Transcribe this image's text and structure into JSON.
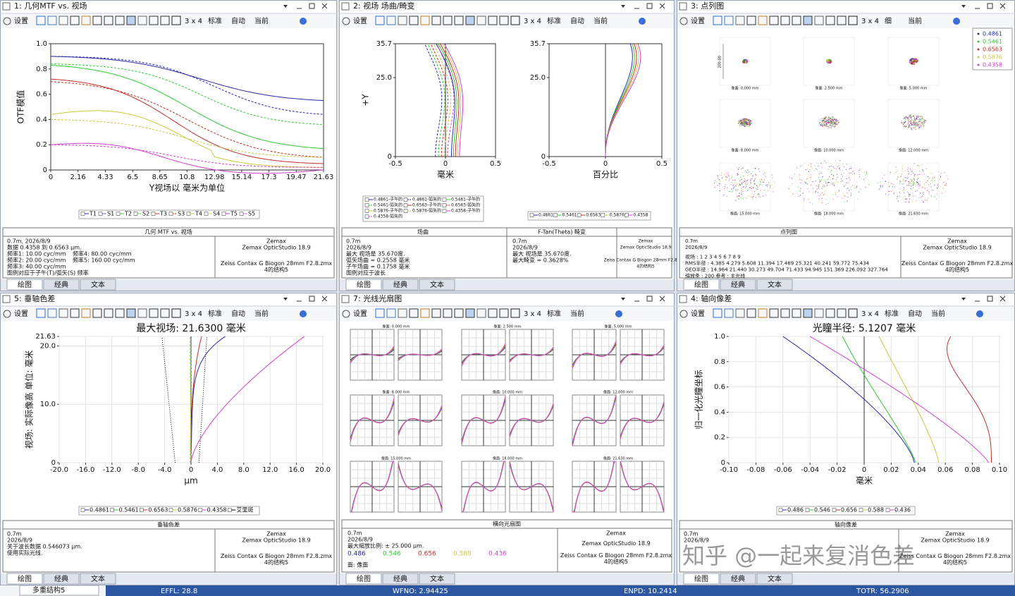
{
  "panels": [
    {
      "title": "1: 几何MTF vs. 视场",
      "toolbar": [
        "设置",
        "3 x 4",
        "标准",
        "自动",
        "当前"
      ],
      "plots": [
        {
          "xticks": [
            "0",
            "2.16",
            "4.33",
            "6.5",
            "8.65",
            "10.8",
            "12.98",
            "15.14",
            "17.3",
            "19.47",
            "21.63"
          ],
          "yticks": [
            "0",
            "0.2",
            "0.4",
            "0.6",
            "0.8",
            "1.0"
          ],
          "xlabel": "Y视场以 毫米为单位",
          "ylabel": "OTF模值"
        }
      ],
      "legends": [
        [
          "T1",
          "S1",
          "T2",
          "S2",
          "T3",
          "S3",
          "T4",
          "S4",
          "T5",
          "S5"
        ]
      ],
      "info": {
        "titles": [
          "几何 MTF vs. 视场"
        ],
        "cols": [
          [
            "0.7m, 2026/8/9",
            "数据 0.4358 到 0.6563 μm.",
            "频率1: 10.00 cyc/mm",
            "频率2: 20.00 cyc/mm",
            "频率3: 40.00 cyc/mm",
            "图例对应于子午(T)/弧矢(S) 频率"
          ],
          [
            "频率4: 80.00 cyc/mm",
            "频率5: 160.00 cyc/mm"
          ],
          [
            "Zemax",
            "Zemax OpticStudio 18.9",
            "Zeiss Contax G Biogon 28mm F2.8.zmx",
            "4的结构5"
          ]
        ]
      },
      "tabs": [
        "绘图",
        "经典",
        "文本"
      ]
    },
    {
      "title": "2: 视场 场曲/畸变",
      "toolbar": [
        "设置",
        "3 x 4",
        "标准",
        "自动",
        "当前"
      ],
      "plots": [
        {
          "xticks": [
            "-0.5",
            "0",
            "0.5"
          ],
          "yticks": [
            "0",
            "25.0",
            "35.7"
          ],
          "xlabel": "毫米",
          "ylabel": "+Y"
        },
        {
          "xticks": [
            "-0.5",
            "0",
            "0.5"
          ],
          "yticks": [
            "0",
            "25.0",
            "35.7"
          ],
          "xlabel": "百分比"
        }
      ],
      "legends": [
        [
          "0.4861-子午的",
          "0.4861-弧矢的",
          "0.5461-子午的",
          "0.5461-弧矢的",
          "0.6563-子午的",
          "0.6563-弧矢的",
          "0.5876-子午的",
          "0.5876-弧矢的",
          "0.4358-子午的",
          "0.4358-弧矢的"
        ],
        [
          "0.4861",
          "0.5461",
          "0.6563",
          "0.5876",
          "0.4358"
        ]
      ],
      "info": {
        "titles": [
          "场曲",
          "F-Tan(Theta) 畸变"
        ],
        "cols": [
          [
            "0.7m",
            "2026/8/9",
            "最大 视场是 35.670度.",
            "弧矢场曲 = 0.2558 毫米",
            "子午场曲 = 0.1758 毫米",
            "图例对应于波长"
          ],
          [
            "0.7m",
            "2026/8/9",
            "最大 视场是 35.670度.",
            "最大畸变 = 0.3628%"
          ],
          [
            "Zemax",
            "Zemax OpticStudio 18.9",
            "Zeiss Contax G Biogon 28mm F2.8.zmx",
            "4的结构5"
          ]
        ]
      },
      "tabs": [
        "绘图",
        "经典",
        "文本"
      ]
    },
    {
      "title": "3: 点列图",
      "toolbar": [
        "设置",
        "3 x 4",
        "细",
        "当前"
      ],
      "legends": [
        [
          "0.4861",
          "0.5461",
          "0.6563",
          "0.5876",
          "0.4358"
        ]
      ],
      "spots": [
        "像面: 0.000 mm",
        "像面: 2.500 mm",
        "像面: 5.000 mm",
        "像面: 8.000 mm",
        "像面: 10.000 mm",
        "像面: 12.000 mm",
        "像面: 15.000 mm",
        "像面: 18.000 mm",
        "像面: 21.630 mm"
      ],
      "scale": "200.00",
      "info": {
        "titles": [
          "点列图"
        ],
        "cols": [
          [
            "0.7m",
            "2026/8/9",
            "视场 :   1   2   3   4   5   6   7   8   9",
            "RMS半径 :  4.385  4.279  5.608  11.394  17.469  25.321  40.241  59.772  75.434",
            "GEO半径 :  14.964  21.440  30.273  49.704  71.433  94.945  151.369  226.092  327.764",
            "缩放条 :  200   参考 :  主光线"
          ],
          [
            "Zemax",
            "Zemax OpticStudio 18.9",
            "Zeiss Contax G Biogon 28mm F2.8.zmx",
            "4的结构5"
          ]
        ]
      },
      "tabs": [
        "绘图",
        "经典",
        "文本"
      ]
    },
    {
      "title": "5: 垂轴色差",
      "toolbar": [
        "设置",
        "3 x 4",
        "标准",
        "自动",
        "当前"
      ],
      "plots": [
        {
          "title": "最大视场: 21.6300 毫米",
          "xticks": [
            "-20.0",
            "-16.0",
            "-12.0",
            "-8.0",
            "-4.0",
            "0",
            "4.0",
            "8.0",
            "12.0",
            "16.0",
            "20.0"
          ],
          "yticks": [
            "0",
            "10.0",
            "20.0",
            "21.63"
          ],
          "xlabel": "μm",
          "ylabel": "视场: 实际像高 单位: 毫米"
        }
      ],
      "legends": [
        [
          "0.4861",
          "0.5461",
          "0.6563",
          "0.5876",
          "0.4358",
          "艾里斑"
        ]
      ],
      "info": {
        "titles": [
          "垂轴色差"
        ],
        "cols": [
          [
            "0.7m",
            "2026/8/9",
            "关于波长数据 0.546073 μm.",
            "使用实际光线."
          ],
          [
            "Zemax",
            "Zemax OpticStudio 18.9",
            "Zeiss Contax G Biogon 28mm F2.8.zmx",
            "4的结构5"
          ]
        ]
      },
      "tabs": [
        "绘图",
        "经典",
        "文本"
      ]
    },
    {
      "title": "7: 光线光扇图",
      "toolbar": [
        "设置",
        "3 x 4",
        "标准",
        "当前"
      ],
      "fans": [
        "像面: 0.000 mm",
        "像面: 2.500 mm",
        "像面: 5.000 mm",
        "像面: 8.000 mm",
        "像面: 10.000 mm",
        "像面: 12.000 mm",
        "像面: 15.000 mm",
        "像面: 18.000 mm",
        "像面: 21.630 mm"
      ],
      "info": {
        "titles": [
          "横向光扇图"
        ],
        "cols": [
          [
            "0.7m",
            "2026/8/9",
            "最大缩放比例: ± 25.000 μm.",
            "面: 像面"
          ],
          [
            "Zemax",
            "Zemax OpticStudio 18.9",
            "Zeiss Contax G Biogon 28mm F2.8.zmx",
            "4的结构5"
          ]
        ],
        "waves": [
          "0.486",
          "0.546",
          "0.656",
          "0.588",
          "0.436"
        ]
      },
      "tabs": [
        "绘图",
        "经典",
        "文本"
      ]
    },
    {
      "title": "4: 轴向像差",
      "toolbar": [
        "设置",
        "3 x 4",
        "标准",
        "自动",
        "当前"
      ],
      "plots": [
        {
          "title": "光瞳半径: 5.1207 毫米",
          "xticks": [
            "-0.10",
            "-0.08",
            "-0.06",
            "-0.04",
            "-0.02",
            "0",
            "0.02",
            "0.04",
            "0.06",
            "0.08",
            "0.10"
          ],
          "yticks": [
            "0",
            "0.2",
            "0.4",
            "0.6",
            "0.8",
            "1.0"
          ],
          "xlabel": "毫米",
          "ylabel": "归一化光瞳坐标"
        }
      ],
      "legends": [
        [
          "0.486",
          "0.546",
          "0.656",
          "0.588",
          "0.436"
        ]
      ],
      "info": {
        "titles": [
          "轴向像差"
        ],
        "cols": [
          [
            "0.7m",
            "2026/8/9"
          ],
          [
            "Zemax",
            "Zemax OpticStudio 18.9",
            "Zeiss Contax G Biogon 28mm F2.8.zmx",
            "4的结构5"
          ]
        ]
      },
      "tabs": [
        "绘图",
        "经典",
        "文本"
      ]
    }
  ],
  "status": {
    "tab": "多重结构5",
    "fields": [
      "EFFL: 28.8",
      "WFNO: 2.94425",
      "ENPD: 10.2414",
      "TOTR: 56.2906"
    ]
  },
  "watermark": "知乎 @一起来复消色差"
}
